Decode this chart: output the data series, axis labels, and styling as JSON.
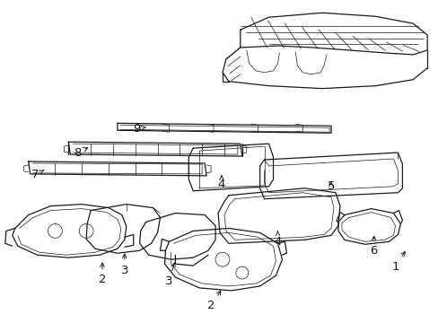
{
  "bg_color": "#ffffff",
  "line_color": "#1a1a1a",
  "figsize": [
    4.89,
    3.6
  ],
  "dpi": 100,
  "lw_main": 0.9,
  "lw_thin": 0.5,
  "lw_med": 0.7,
  "label_fontsize": 9.5
}
